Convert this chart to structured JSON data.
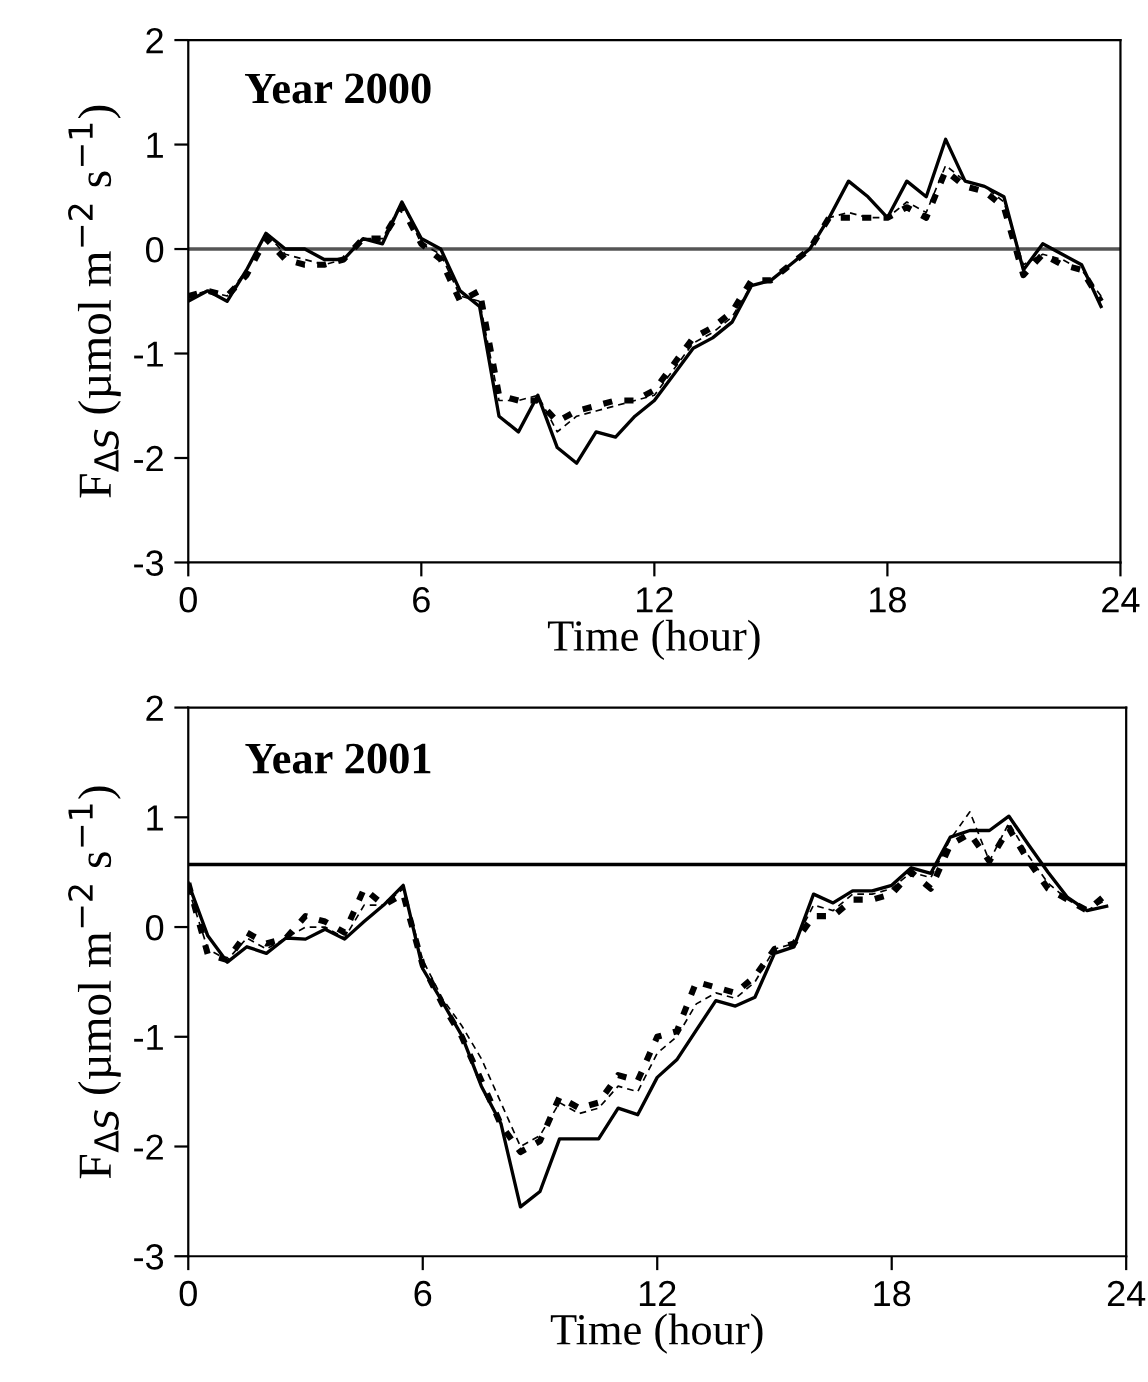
{
  "chart_data": [
    {
      "type": "line",
      "title": "Year 2000",
      "xlabel": "Time (hour)",
      "ylabel": "F$_{ΔS}$ (µmol m$^{−2}$ s$^{−1}$)",
      "x": [
        0,
        0.5,
        1,
        1.5,
        2,
        2.5,
        3,
        3.5,
        4,
        4.5,
        5,
        5.5,
        6,
        6.5,
        7,
        7.5,
        8,
        8.5,
        9,
        9.5,
        10,
        10.5,
        11,
        11.5,
        12,
        12.5,
        13,
        13.5,
        14,
        14.5,
        15,
        15.5,
        16,
        16.5,
        17,
        17.5,
        18,
        18.5,
        19,
        19.5,
        20,
        20.5,
        21,
        21.5,
        22,
        22.5,
        23,
        23.5
      ],
      "series": [
        {
          "color": "#000000",
          "line_style": "solid",
          "values": [
            -0.5,
            -0.4,
            -0.5,
            -0.2,
            0.15,
            0.0,
            0.0,
            -0.1,
            -0.1,
            0.1,
            0.05,
            0.45,
            0.1,
            0.0,
            -0.4,
            -0.55,
            -1.6,
            -1.75,
            -1.4,
            -1.9,
            -2.05,
            -1.75,
            -1.8,
            -1.6,
            -1.45,
            -1.2,
            -0.95,
            -0.85,
            -0.7,
            -0.35,
            -0.3,
            -0.15,
            0.0,
            0.3,
            0.65,
            0.5,
            0.3,
            0.65,
            0.5,
            1.05,
            0.65,
            0.6,
            0.5,
            -0.2,
            0.05,
            -0.05,
            -0.15,
            -0.55
          ]
        },
        {
          "color": "#000000",
          "line_style": "dotted",
          "values": [
            -0.45,
            -0.4,
            -0.45,
            -0.25,
            0.1,
            -0.1,
            -0.15,
            -0.15,
            -0.1,
            0.1,
            0.1,
            0.4,
            0.05,
            -0.1,
            -0.5,
            -0.4,
            -1.4,
            -1.45,
            -1.45,
            -1.65,
            -1.55,
            -1.5,
            -1.45,
            -1.45,
            -1.35,
            -1.1,
            -0.85,
            -0.75,
            -0.6,
            -0.3,
            -0.3,
            -0.15,
            0.0,
            0.3,
            0.3,
            0.3,
            0.3,
            0.4,
            0.3,
            0.75,
            0.6,
            0.55,
            0.4,
            -0.25,
            -0.05,
            -0.15,
            -0.2,
            -0.5
          ]
        },
        {
          "color": "#000000",
          "line_style": "dashed",
          "values": [
            -0.45,
            -0.4,
            -0.45,
            -0.2,
            0.15,
            -0.05,
            -0.1,
            -0.15,
            -0.1,
            0.1,
            0.1,
            0.45,
            0.05,
            -0.05,
            -0.45,
            -0.5,
            -1.45,
            -1.45,
            -1.4,
            -1.75,
            -1.6,
            -1.55,
            -1.5,
            -1.45,
            -1.4,
            -1.15,
            -0.9,
            -0.8,
            -0.65,
            -0.35,
            -0.3,
            -0.15,
            0.0,
            0.3,
            0.35,
            0.3,
            0.3,
            0.45,
            0.35,
            0.8,
            0.65,
            0.6,
            0.45,
            -0.15,
            -0.05,
            -0.1,
            -0.2,
            -0.45
          ]
        }
      ],
      "xlim": [
        0,
        24
      ],
      "xticks": [
        0,
        6,
        12,
        18,
        24
      ],
      "ylim": [
        -3,
        2
      ],
      "yticks": [
        -3,
        -2,
        -1,
        0,
        1,
        2
      ],
      "ref_lines": [
        {
          "axis": "y",
          "value": 0,
          "color": "#555555"
        }
      ]
    },
    {
      "type": "line",
      "title": "Year 2001",
      "xlabel": "Time (hour)",
      "ylabel": "F$_{ΔS}$ (µmol m$^{−2}$ s$^{−1}$)",
      "x": [
        0,
        0.5,
        1,
        1.5,
        2,
        2.5,
        3,
        3.5,
        4,
        4.5,
        5,
        5.5,
        6,
        6.5,
        7,
        7.5,
        8,
        8.5,
        9,
        9.5,
        10,
        10.5,
        11,
        11.5,
        12,
        12.5,
        13,
        13.5,
        14,
        14.5,
        15,
        15.5,
        16,
        16.5,
        17,
        17.5,
        18,
        18.5,
        19,
        19.5,
        20,
        20.5,
        21,
        21.5,
        22,
        22.5,
        23,
        23.5
      ],
      "series": [
        {
          "color": "#000000",
          "line_style": "solid",
          "values": [
            0.4,
            -0.08,
            -0.32,
            -0.18,
            -0.24,
            -0.1,
            -0.11,
            -0.02,
            -0.11,
            0.05,
            0.2,
            0.38,
            -0.38,
            -0.68,
            -0.99,
            -1.45,
            -1.79,
            -2.55,
            -2.41,
            -1.93,
            -1.93,
            -1.93,
            -1.65,
            -1.71,
            -1.37,
            -1.21,
            -0.94,
            -0.67,
            -0.72,
            -0.64,
            -0.24,
            -0.18,
            0.3,
            0.22,
            0.33,
            0.33,
            0.38,
            0.54,
            0.49,
            0.82,
            0.88,
            0.88,
            1.01,
            0.75,
            0.5,
            0.27,
            0.15,
            0.19
          ]
        },
        {
          "color": "#000000",
          "line_style": "dotted",
          "values": [
            0.4,
            -0.25,
            -0.3,
            -0.05,
            -0.15,
            -0.1,
            0.1,
            0.05,
            -0.05,
            0.35,
            0.2,
            0.3,
            -0.35,
            -0.7,
            -1.0,
            -1.4,
            -1.8,
            -2.05,
            -1.95,
            -1.55,
            -1.65,
            -1.6,
            -1.35,
            -1.4,
            -1.0,
            -0.95,
            -0.5,
            -0.55,
            -0.6,
            -0.45,
            -0.2,
            -0.15,
            0.1,
            0.1,
            0.25,
            0.25,
            0.3,
            0.5,
            0.35,
            0.75,
            0.85,
            0.6,
            0.9,
            0.6,
            0.35,
            0.25,
            0.15,
            0.3
          ]
        },
        {
          "color": "#000000",
          "line_style": "dashed",
          "values": [
            0.35,
            -0.2,
            -0.3,
            -0.1,
            -0.2,
            -0.1,
            0.0,
            0.0,
            -0.1,
            0.2,
            0.2,
            0.35,
            -0.3,
            -0.65,
            -0.9,
            -1.2,
            -1.6,
            -2.0,
            -1.9,
            -1.6,
            -1.7,
            -1.65,
            -1.45,
            -1.5,
            -1.15,
            -1.0,
            -0.7,
            -0.6,
            -0.65,
            -0.5,
            -0.2,
            -0.15,
            0.2,
            0.15,
            0.3,
            0.3,
            0.35,
            0.5,
            0.45,
            0.8,
            1.05,
            0.6,
            0.95,
            0.65,
            0.4,
            0.25,
            0.15,
            0.25
          ]
        }
      ],
      "xlim": [
        0,
        24
      ],
      "xticks": [
        0,
        6,
        12,
        18,
        24
      ],
      "ylim": [
        -3,
        2
      ],
      "yticks": [
        -3,
        -2,
        -1,
        0,
        1,
        2
      ],
      "ref_lines": [
        {
          "axis": "y",
          "value": 0.57,
          "color": "#000000"
        }
      ]
    }
  ]
}
